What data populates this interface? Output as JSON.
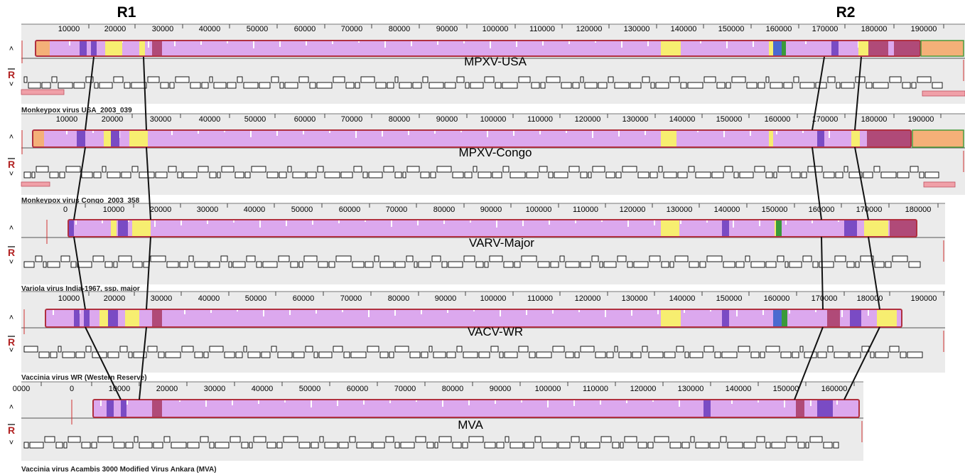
{
  "regions": [
    "R1",
    "R2"
  ],
  "controls": {
    "reverse_label": "R"
  },
  "colors": {
    "lcb_main": "#dca8ee",
    "lcb_border": "#b03040",
    "yellow": "#f7ee70",
    "purple": "#7a4bc4",
    "maroon": "#b04a78",
    "orange": "#f4b078",
    "green": "#3a9a3a",
    "blue": "#4a6ad0",
    "track_bg": "#ebebeb",
    "connector": "#111111",
    "pink": "#f0a0a8"
  },
  "genomes": [
    {
      "label": "MPXV-USA",
      "caption": "Monkeypox virus USA_2003_039",
      "ticks": [
        "10000",
        "20000",
        "30000",
        "40000",
        "50000",
        "60000",
        "70000",
        "80000",
        "90000",
        "100000",
        "110000",
        "120000",
        "130000",
        "140000",
        "150000",
        "160000",
        "170000",
        "180000",
        "190000"
      ]
    },
    {
      "label": "MPXV-Congo",
      "caption": "Monkeypox virus Congo_2003_358",
      "ticks": [
        "10000",
        "20000",
        "30000",
        "40000",
        "50000",
        "60000",
        "70000",
        "80000",
        "90000",
        "100000",
        "110000",
        "120000",
        "130000",
        "140000",
        "150000",
        "160000",
        "170000",
        "180000",
        "190000"
      ]
    },
    {
      "label": "VARV-Major",
      "caption": "Variola virus India-1967, ssp. major",
      "ticks": [
        "0",
        "10000",
        "20000",
        "30000",
        "40000",
        "50000",
        "60000",
        "70000",
        "80000",
        "90000",
        "100000",
        "110000",
        "120000",
        "130000",
        "140000",
        "150000",
        "160000",
        "170000",
        "180000"
      ]
    },
    {
      "label": "VACV-WR",
      "caption": "Vaccinia virus WR (Western Reserve)",
      "ticks": [
        "10000",
        "20000",
        "30000",
        "40000",
        "50000",
        "60000",
        "70000",
        "80000",
        "90000",
        "100000",
        "110000",
        "120000",
        "130000",
        "140000",
        "150000",
        "160000",
        "170000",
        "180000",
        "190000"
      ]
    },
    {
      "label": "MVA",
      "caption": "Vaccinia virus Acambis 3000 Modified Virus Ankara (MVA)",
      "ticks": [
        "0000",
        "0",
        "10000",
        "20000",
        "30000",
        "40000",
        "50000",
        "60000",
        "70000",
        "80000",
        "90000",
        "100000",
        "110000",
        "120000",
        "130000",
        "140000",
        "150000",
        "160000"
      ]
    }
  ]
}
